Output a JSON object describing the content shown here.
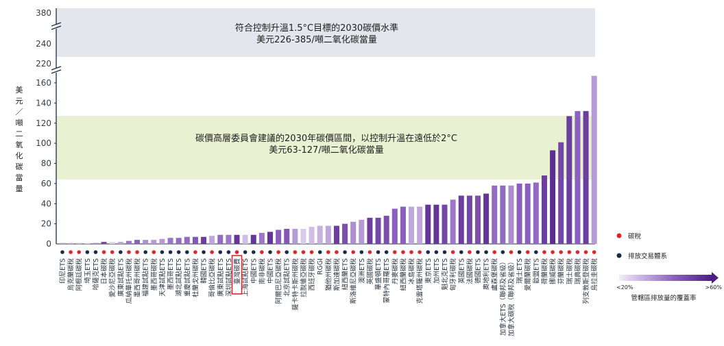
{
  "chart_data": {
    "type": "bar",
    "ylabel": "美元／噸二氧化碳當量",
    "y_ticks_lower": [
      0,
      20,
      40,
      60,
      80,
      100,
      120,
      140,
      160
    ],
    "y_ticks_upper": [
      220,
      240,
      380
    ],
    "ylim": [
      0,
      380
    ],
    "bands": [
      {
        "text1": "符合控制升溫1.5°C目標的2030碳價水準",
        "text2": "美元226-385/噸二氧化碳當量",
        "range": [
          226,
          385
        ],
        "color": "#e3e6eb"
      },
      {
        "text1": "碳價高層委員會建議的2030年碳價區間，以控制升溫在遠低於2°C",
        "text2": "美元63-127/噸二氧化碳當量",
        "range": [
          63,
          127
        ],
        "color": "#eaf0d2"
      }
    ],
    "legend": {
      "tax": "碳稅",
      "ets": "排放交易體系",
      "gradient_low": "<20%",
      "gradient_high": ">60%",
      "gradient_title": "管轄區排放量的覆蓋率",
      "tax_color": "#e0242b",
      "ets_color": "#1a2b45",
      "gradient_colors": [
        "#f1eaf7",
        "#7a4fb0",
        "#4b1e82"
      ]
    },
    "highlight_label": "臺灣碳費",
    "categories": [
      {
        "label": "印尼ETS",
        "value": 1,
        "kind": "ets",
        "cov": 0.3
      },
      {
        "label": "烏克蘭碳稅",
        "value": 1,
        "kind": "tax",
        "cov": 0.25
      },
      {
        "label": "阿根廷碳稅",
        "value": 1,
        "kind": "tax",
        "cov": 0.2
      },
      {
        "label": "埼玉ETS",
        "value": 1,
        "kind": "ets",
        "cov": 0.1
      },
      {
        "label": "哈薩克ETS",
        "value": 1,
        "kind": "ets",
        "cov": 0.4
      },
      {
        "label": "日本碳稅",
        "value": 2,
        "kind": "tax",
        "cov": 0.75
      },
      {
        "label": "愛沙尼亞碳稅",
        "value": 2,
        "kind": "tax",
        "cov": 0.1
      },
      {
        "label": "廣東試點ETS",
        "value": 2,
        "kind": "ets",
        "cov": 0.3
      },
      {
        "label": "瓜納華托州碳稅",
        "value": 3,
        "kind": "tax",
        "cov": 0.5
      },
      {
        "label": "墨西哥州碳稅",
        "value": 4,
        "kind": "tax",
        "cov": 0.6
      },
      {
        "label": "福建試點ETS",
        "value": 4,
        "kind": "ets",
        "cov": 0.4
      },
      {
        "label": "墨西哥碳稅",
        "value": 4,
        "kind": "tax",
        "cov": 0.35
      },
      {
        "label": "天津試點ETS",
        "value": 5,
        "kind": "ets",
        "cov": 0.35
      },
      {
        "label": "墨西哥ETS",
        "value": 6,
        "kind": "ets",
        "cov": 0.5
      },
      {
        "label": "湖北試點ETS",
        "value": 6,
        "kind": "ets",
        "cov": 0.55
      },
      {
        "label": "重慶試點ETS",
        "value": 7,
        "kind": "ets",
        "cov": 0.55
      },
      {
        "label": "杜蘭戈州碳稅",
        "value": 7,
        "kind": "tax",
        "cov": 0.65
      },
      {
        "label": "韓國ETS",
        "value": 7,
        "kind": "ets",
        "cov": 0.8
      },
      {
        "label": "哥倫比亞碳稅",
        "value": 8,
        "kind": "tax",
        "cov": 0.3
      },
      {
        "label": "廣東試點ETS",
        "value": 9,
        "kind": "ets",
        "cov": 0.55
      },
      {
        "label": "深圳試點ETS",
        "value": 9,
        "kind": "ets",
        "cov": 0.5
      },
      {
        "label": "臺灣碳費",
        "value": 9,
        "kind": "tax",
        "cov": 0.85
      },
      {
        "label": "上海試點ETS",
        "value": 9,
        "kind": "ets",
        "cov": 0.2
      },
      {
        "label": "中國ETS",
        "value": 9,
        "kind": "ets",
        "cov": 0.85
      },
      {
        "label": "南非碳稅",
        "value": 11,
        "kind": "tax",
        "cov": 0.5
      },
      {
        "label": "中國ETS",
        "value": 12,
        "kind": "ets",
        "cov": 0.85
      },
      {
        "label": "阿爾巴尼亞碳稅",
        "value": 14,
        "kind": "tax",
        "cov": 0.6
      },
      {
        "label": "北京試點ETS",
        "value": 15,
        "kind": "ets",
        "cov": 0.65
      },
      {
        "label": "薩卡特卡斯州碳稅",
        "value": 15,
        "kind": "tax",
        "cov": 0.35
      },
      {
        "label": "拉脫維亞碳稅",
        "value": 15,
        "kind": "tax",
        "cov": 0.15
      },
      {
        "label": "西班牙碳稅",
        "value": 17,
        "kind": "tax",
        "cov": 0.2
      },
      {
        "label": "RGGI",
        "value": 18,
        "kind": "ets",
        "cov": 0.25
      },
      {
        "label": "猶他州碳稅",
        "value": 18,
        "kind": "tax",
        "cov": 0.3
      },
      {
        "label": "斯加達碳稅",
        "value": 18,
        "kind": "tax",
        "cov": 0.8
      },
      {
        "label": "紐西蘭ETS",
        "value": 20,
        "kind": "ets",
        "cov": 0.7
      },
      {
        "label": "斯洛維尼亞碳稅",
        "value": 22,
        "kind": "tax",
        "cov": 0.4
      },
      {
        "label": "澳洲ETS",
        "value": 24,
        "kind": "ets",
        "cov": 0.35
      },
      {
        "label": "英國碳稅",
        "value": 26,
        "kind": "tax",
        "cov": 0.8
      },
      {
        "label": "華盛頓ETS",
        "value": 26,
        "kind": "ets",
        "cov": 0.75
      },
      {
        "label": "蒙特內哥羅ETS",
        "value": 28,
        "kind": "ets",
        "cov": 0.7
      },
      {
        "label": "丹麥碳稅",
        "value": 35,
        "kind": "tax",
        "cov": 0.6
      },
      {
        "label": "紐西蘭碳稅",
        "value": 37,
        "kind": "tax",
        "cov": 0.6
      },
      {
        "label": "冰島碳稅",
        "value": 37,
        "kind": "tax",
        "cov": 0.3
      },
      {
        "label": "克雷塔羅州碳稅",
        "value": 37,
        "kind": "tax",
        "cov": 0.3
      },
      {
        "label": "東京ETS",
        "value": 39,
        "kind": "ets",
        "cov": 0.85
      },
      {
        "label": "加州ETS",
        "value": 39,
        "kind": "ets",
        "cov": 0.85
      },
      {
        "label": "魁北克ETS",
        "value": 39,
        "kind": "ets",
        "cov": 0.75
      },
      {
        "label": "匈牙利碳稅",
        "value": 44,
        "kind": "tax",
        "cov": 0.5
      },
      {
        "label": "英國ETS",
        "value": 48,
        "kind": "ets",
        "cov": 0.8
      },
      {
        "label": "法國碳稅",
        "value": 48,
        "kind": "tax",
        "cov": 0.75
      },
      {
        "label": "德國ETS",
        "value": 48,
        "kind": "ets",
        "cov": 0.7
      },
      {
        "label": "奧地利ETS",
        "value": 50,
        "kind": "ets",
        "cov": 0.85
      },
      {
        "label": "盧森堡碳稅",
        "value": 58,
        "kind": "tax",
        "cov": 0.55
      },
      {
        "label": "加拿大ETS（聯邦及省級）",
        "value": 58,
        "kind": "ets",
        "cov": 0.55
      },
      {
        "label": "加拿大碳稅（聯邦及省級）",
        "value": 58,
        "kind": "tax",
        "cov": 0.4
      },
      {
        "label": "瑞士ETS",
        "value": 60,
        "kind": "ets",
        "cov": 0.6
      },
      {
        "label": "愛爾蘭碳稅",
        "value": 60,
        "kind": "tax",
        "cov": 0.6
      },
      {
        "label": "歐盟ETS",
        "value": 61,
        "kind": "ets",
        "cov": 0.55
      },
      {
        "label": "荷蘭碳稅",
        "value": 68,
        "kind": "tax",
        "cov": 0.8
      },
      {
        "label": "挪威碳稅",
        "value": 93,
        "kind": "tax",
        "cov": 0.9
      },
      {
        "label": "芬蘭碳稅",
        "value": 101,
        "kind": "tax",
        "cov": 0.75
      },
      {
        "label": "瑞士碳稅",
        "value": 127,
        "kind": "tax",
        "cov": 0.8
      },
      {
        "label": "瑞典碳稅",
        "value": 132,
        "kind": "tax",
        "cov": 0.6
      },
      {
        "label": "列支敦斯登碳稅",
        "value": 132,
        "kind": "tax",
        "cov": 0.8
      },
      {
        "label": "烏拉圭碳稅",
        "value": 167,
        "kind": "tax",
        "cov": 0.35
      }
    ]
  }
}
